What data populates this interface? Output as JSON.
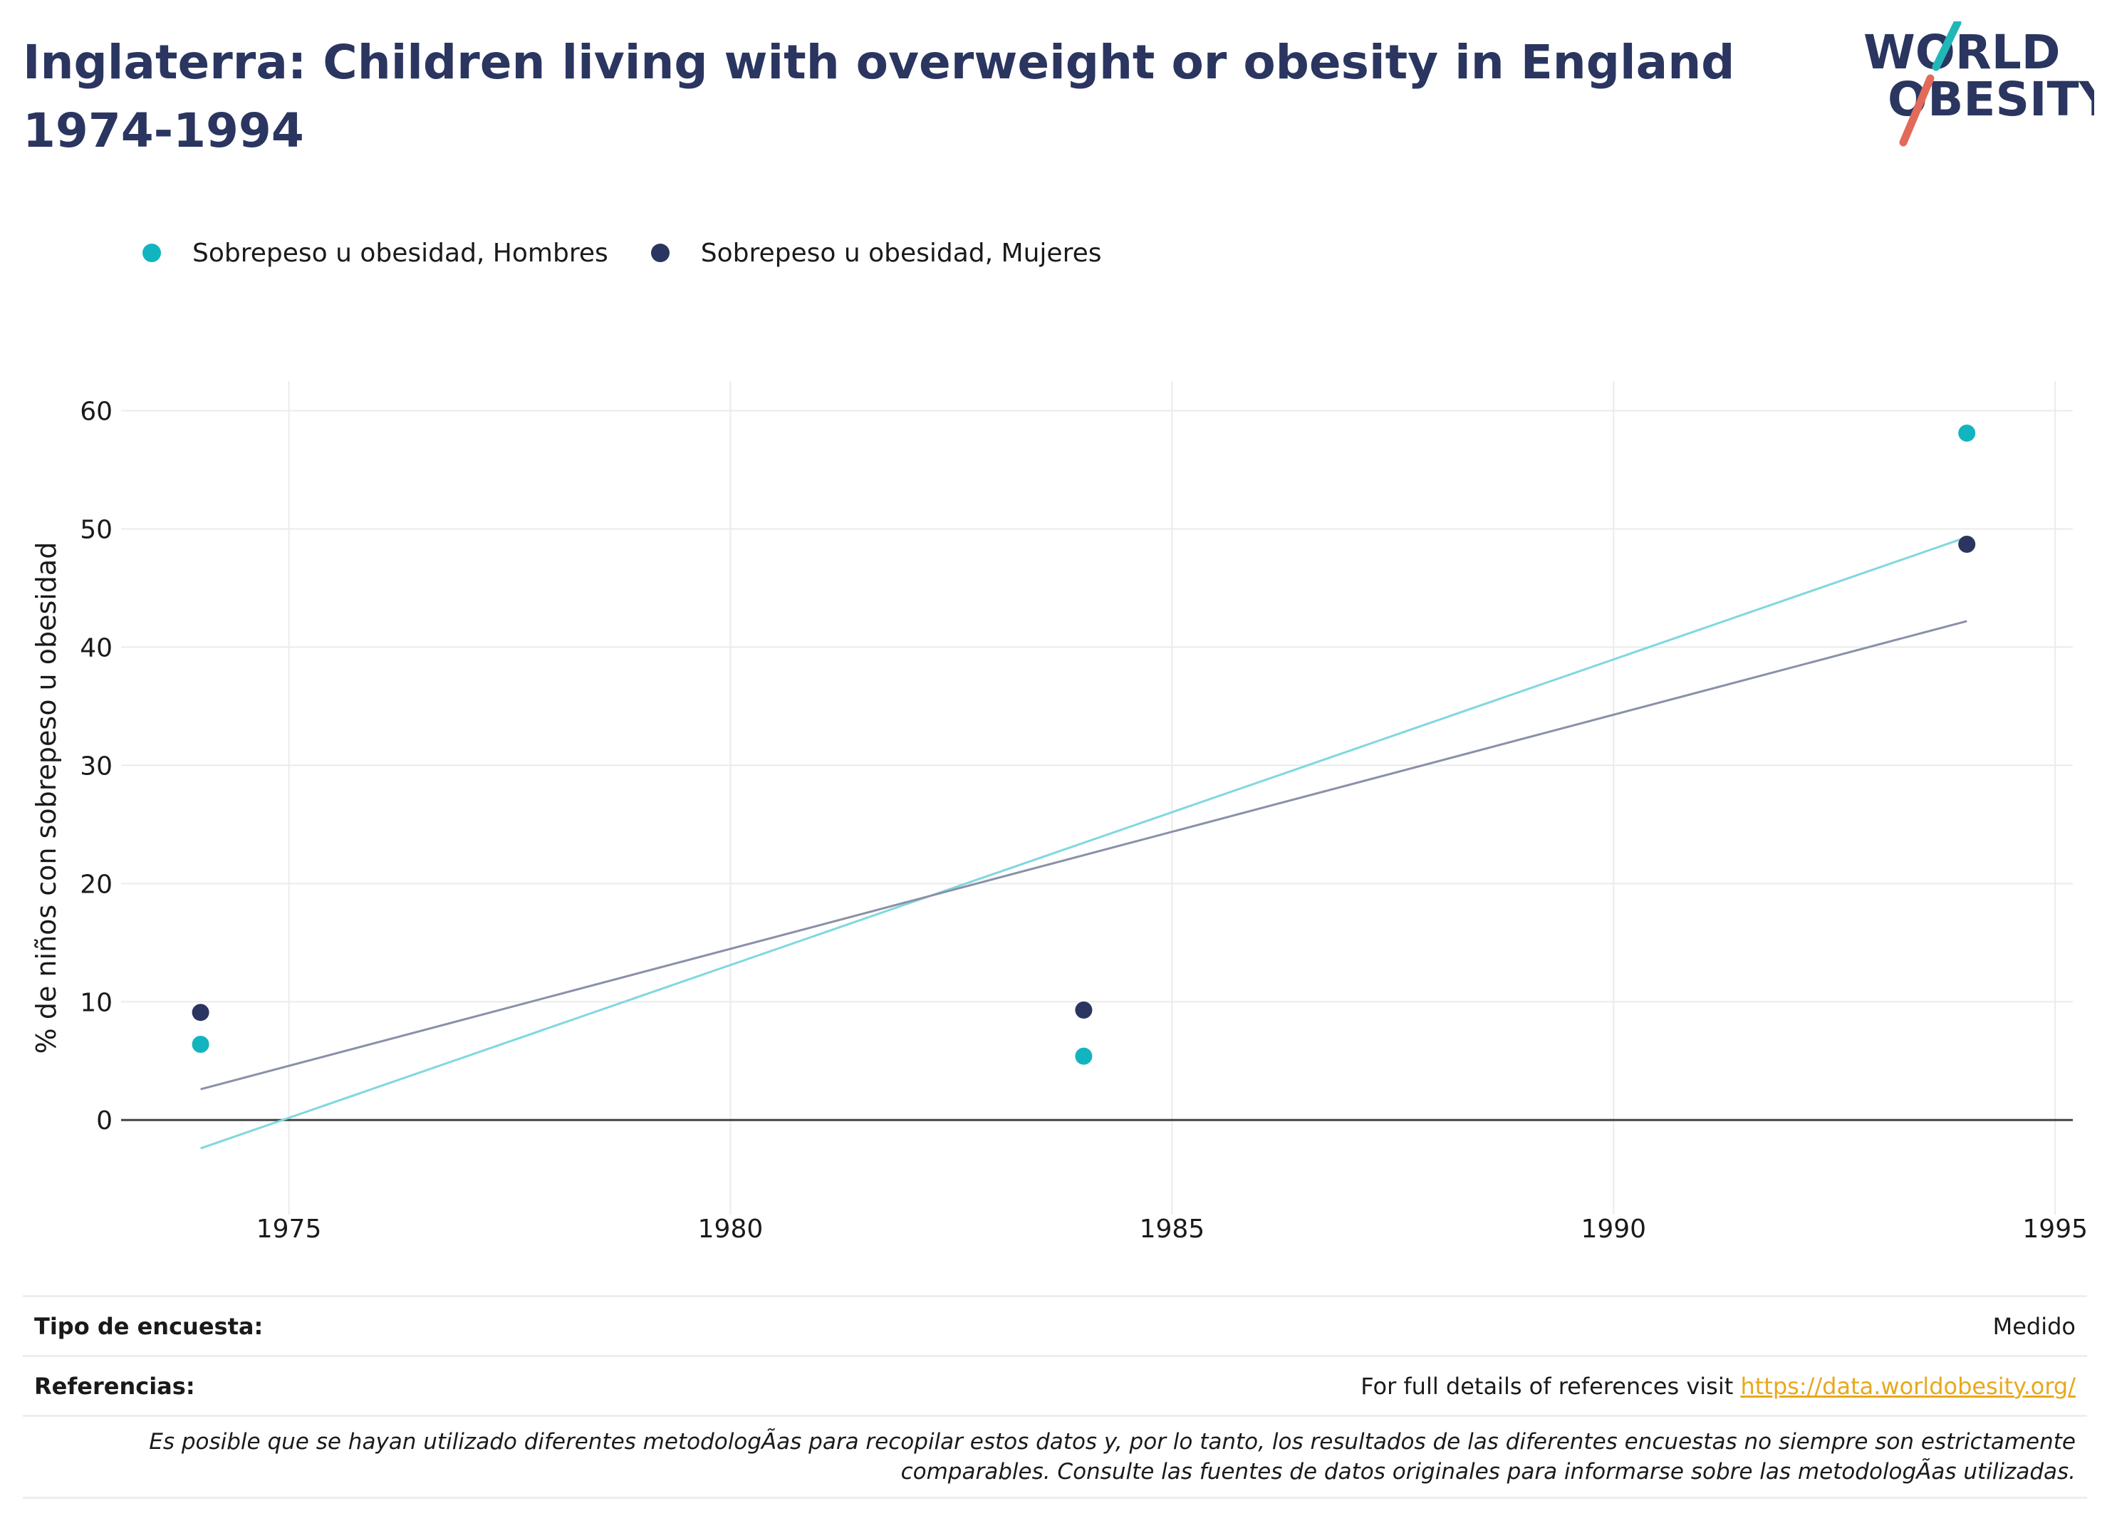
{
  "title": "Inglaterra: Children living with overweight or obesity in England 1974-1994",
  "logo": {
    "line1": "WORLD",
    "line2": "OBESITY"
  },
  "colors": {
    "hombres": "#12b5bf",
    "mujeres": "#2a3560",
    "trend_hombres": "#7fd8de",
    "trend_mujeres": "#8a90a8",
    "title": "#2a3560",
    "logo_slash_top": "#21b7b7",
    "logo_slash_bottom": "#e26a5a",
    "link": "#e8a81c"
  },
  "legend": [
    {
      "label": "Sobrepeso u obesidad, Hombres",
      "color_key": "hombres"
    },
    {
      "label": "Sobrepeso u obesidad, Mujeres",
      "color_key": "mujeres"
    }
  ],
  "chart_data": {
    "type": "scatter",
    "title": "Inglaterra: Children living with overweight or obesity in England 1974-1994",
    "xlabel": "",
    "ylabel": "% de niños con sobrepeso u obesidad",
    "xlim": [
      1973.1,
      1995.2
    ],
    "ylim": [
      -8,
      62.5
    ],
    "xticks": [
      1975,
      1980,
      1985,
      1990,
      1995
    ],
    "yticks": [
      0,
      10,
      20,
      30,
      40,
      50,
      60
    ],
    "grid": true,
    "legend_position": "top-left",
    "series": [
      {
        "name": "Sobrepeso u obesidad, Hombres",
        "x": [
          1974,
          1984,
          1994
        ],
        "y": [
          6.4,
          5.4,
          58.1
        ]
      },
      {
        "name": "Sobrepeso u obesidad, Mujeres",
        "x": [
          1974,
          1984,
          1994
        ],
        "y": [
          9.1,
          9.3,
          48.7
        ]
      }
    ],
    "trendlines": [
      {
        "series": "Sobrepeso u obesidad, Hombres",
        "x": [
          1974,
          1994
        ],
        "y": [
          -2.4,
          49.3
        ]
      },
      {
        "series": "Sobrepeso u obesidad, Mujeres",
        "x": [
          1974,
          1994
        ],
        "y": [
          2.6,
          42.2
        ]
      }
    ]
  },
  "info": {
    "survey_label": "Tipo de encuesta:",
    "survey_value": "Medido",
    "references_label": "Referencias:",
    "references_text": "For full details of references visit ",
    "references_link": "https://data.worldobesity.org/",
    "disclaimer_line1": "Es posible que se hayan utilizado diferentes metodologÃas para recopilar estos datos y, por lo tanto, los resultados de las diferentes encuestas no siempre son estrictamente",
    "disclaimer_line2": "comparables. Consulte las fuentes de datos originales para informarse sobre las metodologÃas utilizadas."
  }
}
